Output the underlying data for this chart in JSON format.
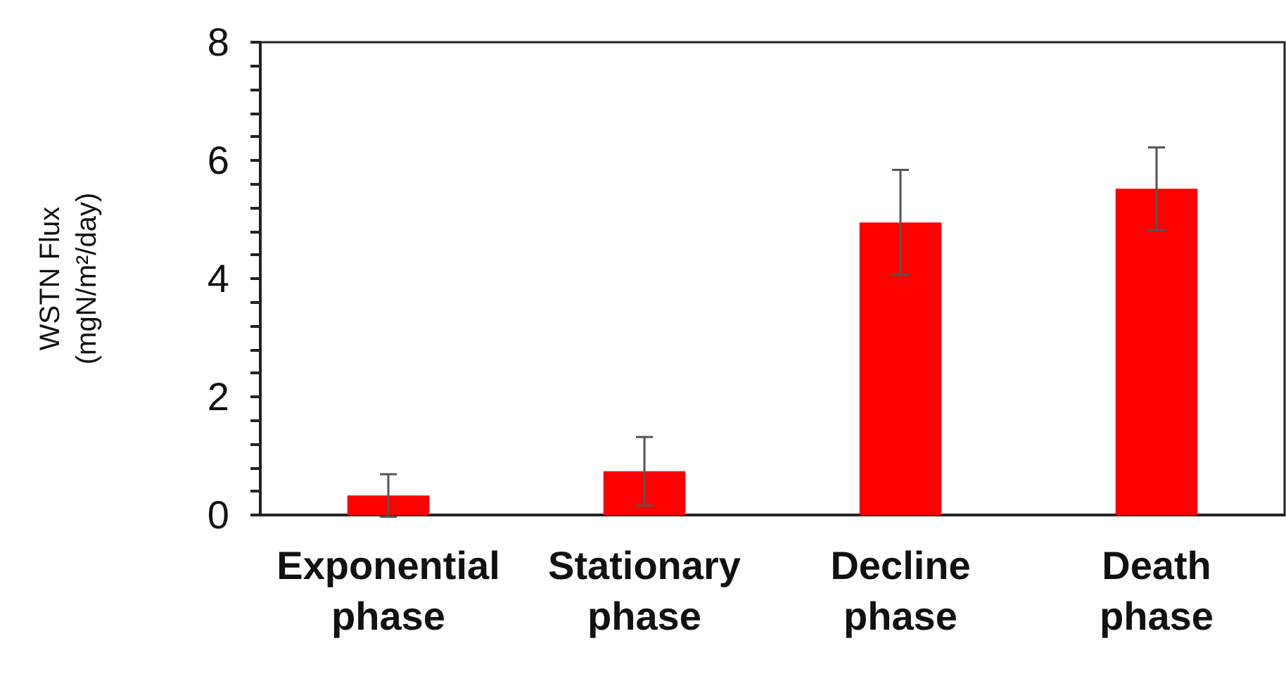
{
  "chart_data": {
    "type": "bar",
    "ylabel": "WSTN Flux\n(mgN/m²/day)",
    "categories": [
      "Exponential\nphase",
      "Stationary\nphase",
      "Decline\nphase",
      "Death\nphase"
    ],
    "values": [
      0.33,
      0.74,
      4.95,
      5.52
    ],
    "errors": [
      0.36,
      0.58,
      0.89,
      0.7
    ],
    "color": "#ff0000",
    "ylim": [
      0,
      8
    ],
    "yticks": [
      0,
      {
        "value": 0.4,
        "label": null
      },
      {
        "value": 0.8,
        "label": null
      },
      {
        "value": 1.2,
        "label": null
      },
      {
        "value": 1.6,
        "label": null
      },
      2,
      {
        "value": 2.4,
        "label": null
      },
      {
        "value": 2.8,
        "label": null
      },
      {
        "value": 3.2,
        "label": null
      },
      {
        "value": 3.6,
        "label": null
      },
      4,
      {
        "value": 4.4,
        "label": null
      },
      {
        "value": 4.8,
        "label": null
      },
      {
        "value": 5.2,
        "label": null
      },
      {
        "value": 5.6,
        "label": null
      },
      6,
      {
        "value": 6.4,
        "label": null
      },
      {
        "value": 6.8,
        "label": null
      },
      {
        "value": 7.2,
        "label": null
      },
      {
        "value": 7.6,
        "label": null
      },
      8
    ],
    "grid": false
  }
}
